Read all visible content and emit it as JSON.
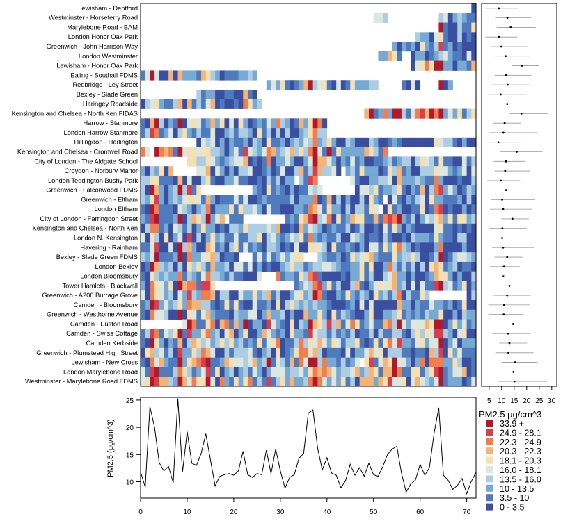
{
  "chart_data": [
    {
      "type": "heatmap",
      "title": "",
      "xlabel": "",
      "ylabel": "",
      "sites": [
        "Lewisham - Deptford",
        "Westminster - Horseferry Road",
        "Marylebone Road - BAM",
        "London Honor Oak Park",
        "Greenwich - John Harrison Way",
        "London Westminster",
        "Lewisham - Honor Oak Park",
        "Ealing - Southall FDMS",
        "Redbridge - Ley Street",
        "Bexley - Slade Green",
        "Haringey Roadside",
        "Kensington and Chelsea - North Ken FIDAS",
        "Harrow - Stanmore",
        "London Harrow Stanmore",
        "Hillingdon - Harlington",
        "Kensington and Chelsea - Cromwell Road",
        "City of London - The Aldgate School",
        "Croydon - Norbury Manor",
        "London Teddington Bushy Park",
        "Greenwich - Falconwood FDMS",
        "Greenwich - Eltham",
        "London Eltham",
        "City of London - Farringdon Street",
        "Kensington and Chelsea - North Ken",
        "London N. Kensington",
        "Havering - Rainham",
        "Bexley - Slade Green FDMS",
        "London Bexley",
        "London Bloomsbury",
        "Tower Hamlets - Blackwall",
        "Greenwich - A206 Burrage Grove",
        "Camden - Bloomsbury",
        "Greenwich - Westhorne Avenue",
        "Camden - Euston Road",
        "Camden - Swiss Cottage",
        "Camden Kerbside",
        "Greenwich - Plumstead High Street",
        "Lewisham - New Cross",
        "London Marylebone Road",
        "Westminster - Marylebone Road FDMS"
      ],
      "hours": 72,
      "data_start_hour": [
        71,
        50,
        64,
        59,
        54,
        51,
        58,
        0,
        27,
        12,
        0,
        48,
        0,
        0,
        12,
        0,
        7,
        0,
        0,
        0,
        0,
        0,
        0,
        0,
        0,
        0,
        0,
        0,
        0,
        0,
        0,
        0,
        0,
        0,
        0,
        0,
        0,
        0,
        0,
        0
      ],
      "gaps": [
        [],
        [
          [
            53,
            64
          ]
        ],
        [],
        [],
        [],
        [
          [
            56,
            58
          ]
        ],
        [],
        [
          [
            25,
            72
          ]
        ],
        [
          [
            51,
            56
          ],
          [
            60,
            64
          ],
          [
            67,
            72
          ]
        ],
        [
          [
            25,
            72
          ]
        ],
        [
          [
            26,
            72
          ]
        ],
        [],
        [
          [
            40,
            72
          ]
        ],
        [
          [
            40,
            72
          ]
        ],
        [],
        [
          [
            2,
            3
          ],
          [
            53,
            72
          ]
        ],
        [
          [
            7,
            10
          ]
        ],
        [
          [
            7,
            12
          ],
          [
            43,
            44
          ]
        ],
        [
          [
            33,
            34
          ],
          [
            38,
            45
          ]
        ],
        [
          [
            13,
            24
          ],
          [
            39,
            46
          ]
        ],
        [
          [
            52,
            53
          ]
        ],
        [
          [
            51,
            52
          ]
        ],
        [
          [
            18,
            19
          ],
          [
            22,
            31
          ]
        ],
        [],
        [],
        [],
        [
          [
            21,
            24
          ],
          [
            35,
            38
          ]
        ],
        [],
        [
          [
            26,
            29
          ]
        ],
        [
          [
            16,
            33
          ]
        ],
        [
          [
            62,
            70
          ]
        ],
        [],
        [],
        [
          [
            0,
            9
          ]
        ],
        [],
        [],
        [],
        [
          [
            47,
            48
          ]
        ],
        [],
        []
      ],
      "site_means": [
        8.9,
        12.3,
        13.6,
        8.9,
        9.9,
        11.6,
        18.2,
        11.8,
        12.4,
        9.6,
        12.2,
        17.9,
        11.2,
        10.7,
        8.7,
        16.0,
        11.7,
        11.4,
        9.7,
        11.8,
        10.2,
        10.6,
        14.3,
        10.3,
        10.2,
        10.6,
        12.2,
        10.9,
        10.7,
        13.1,
        12.2,
        11.0,
        10.8,
        14.6,
        12.6,
        13.1,
        12.7,
        15.4,
        14.7,
        15.1
      ],
      "mean_axis": {
        "ticks": [
          5,
          10,
          15,
          20,
          25,
          30
        ]
      },
      "legend": {
        "title": "PM2.5 μg/cm^3",
        "bins": [
          {
            "label": "33.9 +",
            "color": "#B2182B"
          },
          {
            "label": "24.9 - 28.1",
            "color": "#D6404E"
          },
          {
            "label": "22.3 - 24.9",
            "color": "#F07E4F"
          },
          {
            "label": "20.3 - 22.3",
            "color": "#F5B477"
          },
          {
            "label": "18.1 - 20.3",
            "color": "#F4E0B3"
          },
          {
            "label": "16.0 - 18.1",
            "color": "#DCE8DF"
          },
          {
            "label": "13.5 - 16.0",
            "color": "#ADCDE3"
          },
          {
            "label": "10 - 13.5",
            "color": "#76A9D3"
          },
          {
            "label": "3.5 - 10",
            "color": "#4F7BBE"
          },
          {
            "label": "0 - 3.5",
            "color": "#3B4FA0"
          }
        ]
      }
    },
    {
      "type": "line",
      "title": "",
      "xlabel": "",
      "ylabel": "PM2.5 (μg/cm^3)",
      "xlim": [
        0,
        72
      ],
      "ylim": [
        7,
        25.5
      ],
      "x_ticks": [
        0,
        10,
        20,
        30,
        40,
        50,
        60,
        70
      ],
      "y_ticks": [
        10,
        15,
        20,
        25
      ],
      "x": [
        0,
        1,
        2,
        3,
        4,
        5,
        6,
        7,
        8,
        9,
        10,
        11,
        12,
        13,
        14,
        15,
        16,
        17,
        18,
        19,
        20,
        21,
        22,
        23,
        24,
        25,
        26,
        27,
        28,
        29,
        30,
        31,
        32,
        33,
        34,
        35,
        36,
        37,
        38,
        39,
        40,
        41,
        42,
        43,
        44,
        45,
        46,
        47,
        48,
        49,
        50,
        51,
        52,
        53,
        54,
        55,
        56,
        57,
        58,
        59,
        60,
        61,
        62,
        63,
        64,
        65,
        66,
        67,
        68,
        69,
        70,
        71,
        72
      ],
      "y": [
        11.8,
        9.0,
        23.8,
        20.0,
        13.5,
        12.0,
        12.8,
        9.8,
        25.3,
        11.8,
        19.2,
        13.4,
        13.0,
        15.2,
        18.8,
        14.0,
        9.2,
        11.0,
        11.3,
        11.5,
        11.2,
        12.0,
        15.6,
        11.3,
        10.8,
        11.5,
        11.3,
        15.8,
        11.5,
        16.0,
        12.0,
        8.8,
        10.8,
        11.3,
        14.3,
        15.2,
        22.6,
        23.2,
        16.2,
        12.2,
        14.4,
        11.6,
        11.2,
        8.9,
        10.2,
        13.2,
        11.2,
        12.6,
        11.0,
        13.4,
        11.3,
        11.0,
        12.8,
        15.0,
        16.0,
        16.5,
        11.6,
        8.1,
        9.6,
        10.3,
        13.2,
        11.2,
        12.6,
        18.9,
        23.6,
        11.2,
        10.3,
        8.6,
        9.3,
        10.6,
        7.8,
        10.1,
        11.7
      ]
    }
  ]
}
